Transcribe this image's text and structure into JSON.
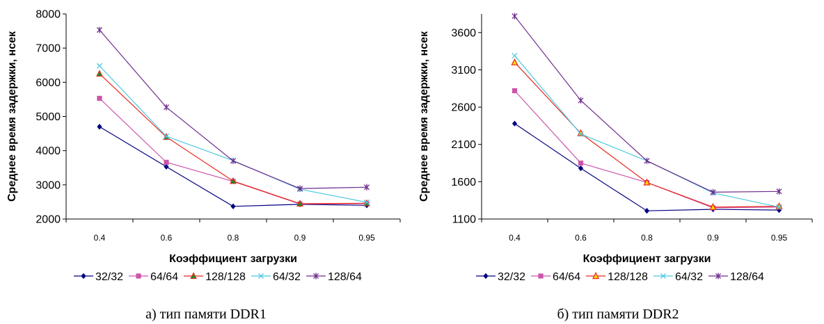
{
  "chart_data": [
    {
      "type": "line",
      "caption": "а) тип памяти DDR1",
      "xlabel": "Коэффициент загрузки",
      "ylabel": "Среднее время задержки, нсек",
      "categories": [
        "0.4",
        "0.6",
        "0.8",
        "0.9",
        "0.95"
      ],
      "ylim": [
        2000,
        8000
      ],
      "yticks": [
        2000,
        3000,
        4000,
        5000,
        6000,
        7000,
        8000
      ],
      "grid": false,
      "legend_position": "bottom",
      "series": [
        {
          "name": "32/32",
          "color": "#000080",
          "marker": "diamond",
          "values": [
            4700,
            3530,
            2370,
            2430,
            2400
          ]
        },
        {
          "name": "64/64",
          "color": "#CC55AA",
          "marker": "square",
          "values": [
            5530,
            3660,
            3100,
            2440,
            2450
          ]
        },
        {
          "name": "128/128",
          "color": "#E8281E",
          "marker": "triangle",
          "values": [
            6250,
            4400,
            3110,
            2450,
            2460
          ]
        },
        {
          "name": "64/32",
          "color": "#4CC8E0",
          "marker": "x",
          "values": [
            6480,
            4420,
            3710,
            2870,
            2490
          ]
        },
        {
          "name": "128/64",
          "color": "#6E2C8C",
          "marker": "star",
          "values": [
            7530,
            5270,
            3700,
            2890,
            2930
          ]
        }
      ]
    },
    {
      "type": "line",
      "caption": "б) тип памяти DDR2",
      "xlabel": "Коэффициент загрузки",
      "ylabel": "Среднее время задержки, нсек",
      "categories": [
        "0.4",
        "0.6",
        "0.8",
        "0.9",
        "0.95"
      ],
      "ylim": [
        1100,
        3850
      ],
      "yticks": [
        1100,
        1600,
        2100,
        2600,
        3100,
        3600
      ],
      "grid": false,
      "legend_position": "bottom",
      "series": [
        {
          "name": "32/32",
          "color": "#000080",
          "marker": "diamond",
          "values": [
            2380,
            1780,
            1210,
            1230,
            1220
          ]
        },
        {
          "name": "64/64",
          "color": "#CC55AA",
          "marker": "square",
          "values": [
            2820,
            1850,
            1590,
            1250,
            1260
          ]
        },
        {
          "name": "128/128",
          "color": "#E8281E",
          "marker": "triangle-open",
          "values": [
            3200,
            2250,
            1590,
            1260,
            1270
          ]
        },
        {
          "name": "64/32",
          "color": "#4CC8E0",
          "marker": "x",
          "values": [
            3290,
            2240,
            1880,
            1450,
            1260
          ]
        },
        {
          "name": "128/64",
          "color": "#6E2C8C",
          "marker": "star",
          "values": [
            3820,
            2690,
            1880,
            1460,
            1470
          ]
        }
      ]
    }
  ]
}
